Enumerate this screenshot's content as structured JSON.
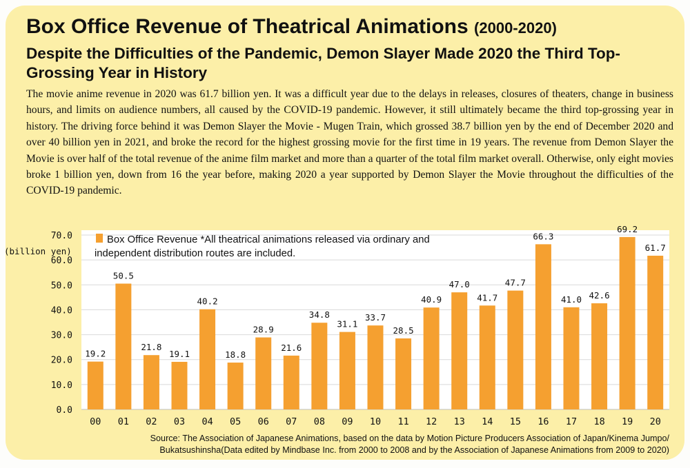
{
  "header": {
    "title": "Box Office Revenue of Theatrical Animations",
    "title_years": "(2000-2020)",
    "subtitle": "Despite the Difficulties of the Pandemic, Demon Slayer Made 2020 the Third Top-Grossing Year in History"
  },
  "body": {
    "paragraph": "The movie anime revenue in 2020 was 61.7 billion yen. It was a difficult year due to the delays in releases, closures of theaters, change in business hours, and limits on audience numbers, all caused by the COVID-19 pandemic. However, it still ultimately became the third top-grossing year in history. The driving force behind it was Demon Slayer the Movie - Mugen Train, which grossed 38.7 billion yen by the end of December 2020 and over 40 billion yen in 2021, and broke the record for the highest grossing movie for the first time in 19 years. The revenue from Demon Slayer the Movie is over half of the total revenue of the anime film market and more than a quarter of the total film market overall. Otherwise, only eight movies broke 1 billion yen, down from 16 the year before, making 2020 a year supported by Demon Slayer the Movie throughout the difficulties of the COVID-19 pandemic."
  },
  "chart_data": {
    "type": "bar",
    "unit_label": "(billion yen)",
    "categories": [
      "00",
      "01",
      "02",
      "03",
      "04",
      "05",
      "06",
      "07",
      "08",
      "09",
      "10",
      "11",
      "12",
      "13",
      "14",
      "15",
      "16",
      "17",
      "18",
      "19",
      "20"
    ],
    "values": [
      19.2,
      50.5,
      21.8,
      19.1,
      40.2,
      18.8,
      28.9,
      21.6,
      34.8,
      31.1,
      33.7,
      28.5,
      40.9,
      47.0,
      41.7,
      47.7,
      66.3,
      41.0,
      42.6,
      69.2,
      61.7
    ],
    "value_labels": [
      "19.2",
      "50.5",
      "21.8",
      "19.1",
      "40.2",
      "18.8",
      "28.9",
      "21.6",
      "34.8",
      "31.1",
      "33.7",
      "28.5",
      "40.9",
      "47.0",
      "41.7",
      "47.7",
      "66.3",
      "41.0",
      "42.6",
      "69.2",
      "61.7"
    ],
    "yticks": [
      "0.0",
      "10.0",
      "20.0",
      "30.0",
      "40.0",
      "50.0",
      "60.0",
      "70.0"
    ],
    "ylim": [
      0,
      70
    ],
    "legend_line1": "Box Office Revenue *All theatrical animations released via ordinary and",
    "legend_line2": "independent distribution routes are included.",
    "legend_position": "top-left",
    "bar_color": "#f5a030",
    "grid": true
  },
  "footer": {
    "source_line1": "Source: The Association of Japanese Animations, based on the data by Motion Picture Producers Association of Japan/Kinema Jumpo/",
    "source_line2": "Bukatsushinsha(Data edited by Mindbase Inc. from 2000 to 2008 and by the Association of Japanese Animations from 2009 to 2020)"
  }
}
